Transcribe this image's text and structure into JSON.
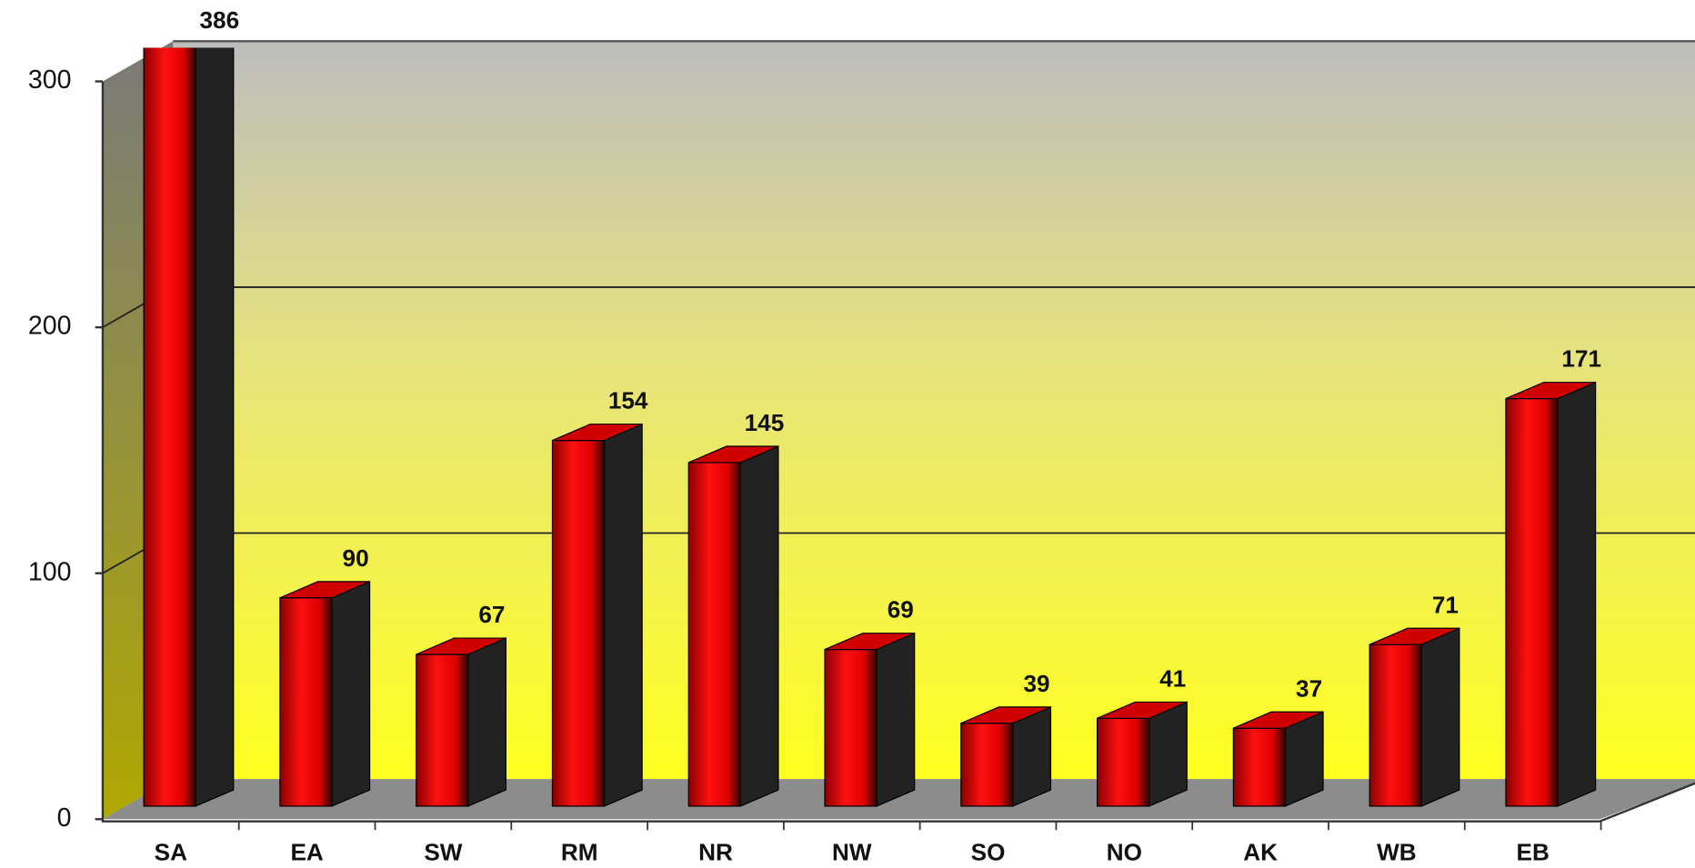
{
  "chart_data": {
    "type": "bar3d",
    "categories": [
      "SA",
      "EA",
      "SW",
      "RM",
      "NR",
      "NW",
      "SO",
      "NO",
      "AK",
      "WB",
      "EB"
    ],
    "values": [
      386,
      90,
      67,
      154,
      145,
      69,
      39,
      41,
      37,
      71,
      171
    ],
    "color": "#ff0000",
    "ylim": [
      0,
      300
    ],
    "yticks": [
      0,
      100,
      200,
      300
    ],
    "grid": true
  }
}
